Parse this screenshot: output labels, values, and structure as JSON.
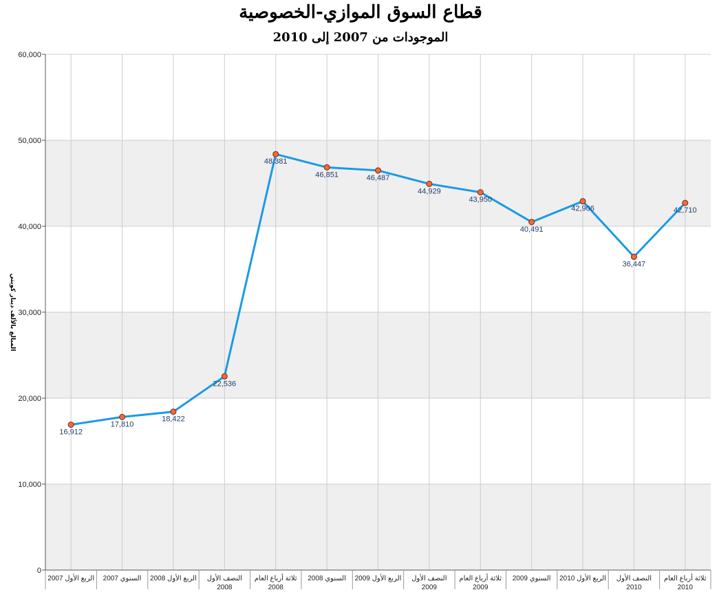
{
  "chart_data": {
    "type": "line",
    "title": "قطاع السوق الموازي-الخصوصية",
    "subtitle": "الموجودات من 2007 إلى 2010",
    "ylabel": "المبالغ بالألف دينار كويتي",
    "xlabel": "",
    "ylim": [
      0,
      60000
    ],
    "yticks": [
      "0",
      "10,000",
      "20,000",
      "30,000",
      "40,000",
      "50,000",
      "60,000"
    ],
    "grid": true,
    "categories": [
      [
        "الربع الأول 2007"
      ],
      [
        "السنوي 2007"
      ],
      [
        "الربع الأول 2008"
      ],
      [
        "النصف الأول",
        "2008"
      ],
      [
        "ثلاثة أرباع العام",
        "2008"
      ],
      [
        "السنوي 2008"
      ],
      [
        "الربع الأول 2009"
      ],
      [
        "النصف الأول",
        "2009"
      ],
      [
        "ثلاثة أرباع العام",
        "2009"
      ],
      [
        "السنوي 2009"
      ],
      [
        "الربع الأول 2010"
      ],
      [
        "النصف الأول",
        "2010"
      ],
      [
        "ثلاثة أرباع العام",
        "2010"
      ]
    ],
    "values": [
      16912,
      17810,
      18422,
      22536,
      48381,
      46851,
      46487,
      44929,
      43950,
      40491,
      42906,
      36447,
      42710
    ],
    "data_labels": [
      "16,912",
      "17,810",
      "18,422",
      "22,536",
      "48,381",
      "46,851",
      "46,487",
      "44,929",
      "43,950",
      "40,491",
      "42,906",
      "36,447",
      "42,710"
    ],
    "colors": {
      "line": "#1a9ae6",
      "marker_fill": "#f06a3c",
      "marker_stroke": "#7a2a10",
      "band": "#efefef",
      "grid": "#cccccc",
      "axis": "#555555",
      "label": "#1f3f6e"
    }
  }
}
